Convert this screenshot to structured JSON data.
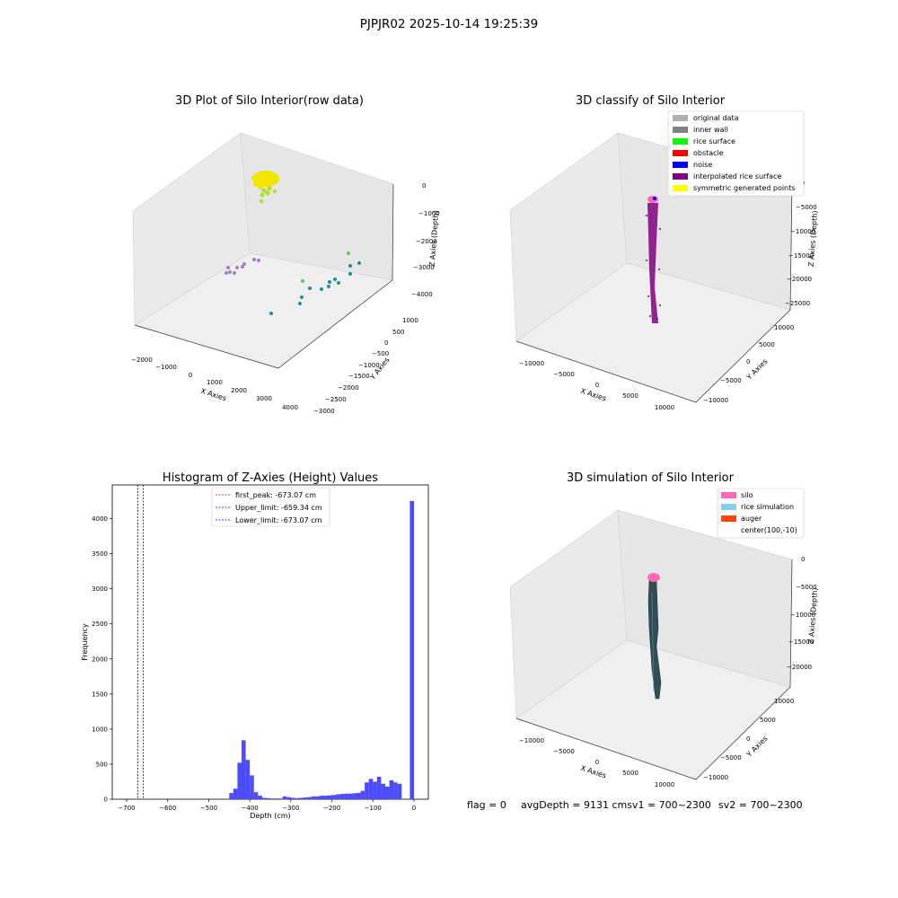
{
  "suptitle": "PJPJR02 2025-10-14 19:25:39",
  "chart_data": [
    {
      "type": "scatter",
      "title": "3D Plot of Silo Interior(row data)",
      "xlabel": "X Axies",
      "ylabel": "Y Axies",
      "zlabel": "Z Axies (Depth)",
      "xticks": [
        "−2000",
        "−1000",
        "0",
        "1000",
        "2000",
        "3000",
        "4000"
      ],
      "yticks": [
        "1000",
        "500",
        "0",
        "−500",
        "−1000",
        "−1500",
        "−2000",
        "−2500",
        "−3000"
      ],
      "zticks": [
        "0",
        "−1000",
        "−2000",
        "−3000",
        "−4000"
      ],
      "point_groups": [
        {
          "color": "#f2e500",
          "description": "top cluster",
          "count": 40
        },
        {
          "color": "#b5de2b",
          "description": "upper cluster",
          "count": 10
        },
        {
          "color": "#a67fbf",
          "description": "left cluster",
          "count": 10
        },
        {
          "color": "#21918c",
          "description": "middle cluster",
          "count": 14
        },
        {
          "color": "#5ec962",
          "description": "right cluster",
          "count": 3
        }
      ]
    },
    {
      "type": "scatter",
      "title": "3D classify of Silo Interior",
      "xlabel": "X Axies",
      "ylabel": "Y Axies",
      "zlabel": "Z Axies (Depth)",
      "xticks": [
        "−10000",
        "−5000",
        "0",
        "5000",
        "10000"
      ],
      "yticks": [
        "10000",
        "5000",
        "0",
        "−5000",
        "−10000"
      ],
      "zticks": [
        "0",
        "−5000",
        "−10000",
        "−15000",
        "−20000",
        "−25000"
      ],
      "legend_position": "top-right",
      "legend": [
        {
          "label": "original data",
          "color": "#b0b0b0"
        },
        {
          "label": "inner wall",
          "color": "#808080"
        },
        {
          "label": "rice surface",
          "color": "#00ff00"
        },
        {
          "label": "obstacle",
          "color": "#ff0000"
        },
        {
          "label": "noise",
          "color": "#0000ff"
        },
        {
          "label": "interpolated rice surface",
          "color": "#800080"
        },
        {
          "label": "symmetric generated points",
          "color": "#ffff00"
        }
      ]
    },
    {
      "type": "bar",
      "title": "Histogram of Z-Axies (Height) Values",
      "xlabel": "Depth (cm)",
      "ylabel": "Frequency",
      "xlim": [
        -735,
        35
      ],
      "ylim": [
        0,
        4480
      ],
      "xticks": [
        -700,
        -600,
        -500,
        -400,
        -300,
        -200,
        -100,
        0
      ],
      "yticks": [
        0,
        500,
        1000,
        1500,
        2000,
        2500,
        3000,
        3500,
        4000
      ],
      "bar_color": "#4c4cff",
      "bin_width": 10,
      "bins": [
        {
          "x": -450,
          "y": 90
        },
        {
          "x": -440,
          "y": 150
        },
        {
          "x": -430,
          "y": 520
        },
        {
          "x": -420,
          "y": 840
        },
        {
          "x": -410,
          "y": 560
        },
        {
          "x": -400,
          "y": 340
        },
        {
          "x": -390,
          "y": 100
        },
        {
          "x": -380,
          "y": 50
        },
        {
          "x": -370,
          "y": 20
        },
        {
          "x": -360,
          "y": 15
        },
        {
          "x": -350,
          "y": 10
        },
        {
          "x": -340,
          "y": 10
        },
        {
          "x": -330,
          "y": 10
        },
        {
          "x": -320,
          "y": 40
        },
        {
          "x": -310,
          "y": 30
        },
        {
          "x": -300,
          "y": 20
        },
        {
          "x": -290,
          "y": 15
        },
        {
          "x": -280,
          "y": 20
        },
        {
          "x": -270,
          "y": 25
        },
        {
          "x": -260,
          "y": 30
        },
        {
          "x": -250,
          "y": 40
        },
        {
          "x": -240,
          "y": 40
        },
        {
          "x": -230,
          "y": 50
        },
        {
          "x": -220,
          "y": 50
        },
        {
          "x": -210,
          "y": 55
        },
        {
          "x": -200,
          "y": 60
        },
        {
          "x": -190,
          "y": 70
        },
        {
          "x": -180,
          "y": 75
        },
        {
          "x": -170,
          "y": 80
        },
        {
          "x": -160,
          "y": 80
        },
        {
          "x": -150,
          "y": 85
        },
        {
          "x": -140,
          "y": 90
        },
        {
          "x": -130,
          "y": 120
        },
        {
          "x": -120,
          "y": 240
        },
        {
          "x": -110,
          "y": 290
        },
        {
          "x": -100,
          "y": 250
        },
        {
          "x": -90,
          "y": 320
        },
        {
          "x": -80,
          "y": 220
        },
        {
          "x": -70,
          "y": 180
        },
        {
          "x": -60,
          "y": 270
        },
        {
          "x": -50,
          "y": 240
        },
        {
          "x": -40,
          "y": 220
        },
        {
          "x": -10,
          "y": 4250
        }
      ],
      "vlines": [
        {
          "label": "first_peak: -673.07 cm",
          "x": -673.07,
          "color": "#ff0000"
        },
        {
          "label": "Upper_limit: -659.34 cm",
          "x": -659.34,
          "color": "#0000ff"
        },
        {
          "label": "Lower_limit: -673.07 cm",
          "x": -673.07,
          "color": "#0000ff"
        }
      ],
      "legend_position": "upper center"
    },
    {
      "type": "surface",
      "title": "3D simulation of Silo Interior",
      "xlabel": "X Axies",
      "ylabel": "Y Axies",
      "zlabel": "Z Axies (Depth)",
      "xticks": [
        "−10000",
        "−5000",
        "0",
        "5000",
        "10000"
      ],
      "yticks": [
        "10000",
        "5000",
        "0",
        "−5000",
        "−10000"
      ],
      "zticks": [
        "0",
        "−5000",
        "−10000",
        "−15000",
        "−20000"
      ],
      "legend_position": "top-right",
      "legend": [
        {
          "label": "silo",
          "color": "#ff69b4"
        },
        {
          "label": "rice simulation",
          "color": "#87ceeb"
        },
        {
          "label": "auger",
          "color": "#ff4500"
        },
        {
          "label": "center(100,-10)",
          "color": ""
        }
      ]
    }
  ],
  "footer": {
    "flag": "flag = 0",
    "avg": "avgDepth = 9131 cmsv1 = 700~2300",
    "sv2": "sv2 = 700~2300"
  }
}
